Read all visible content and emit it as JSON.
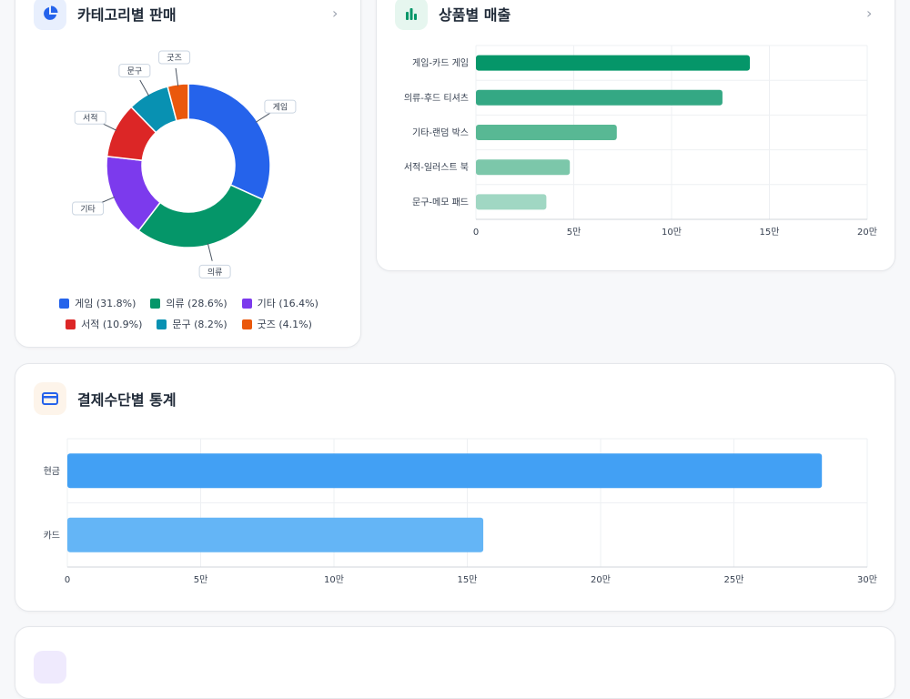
{
  "category_card": {
    "title": "카테고리별 판매",
    "icon": "pie-chart-icon",
    "chart_data": {
      "type": "pie",
      "categories": [
        "게임",
        "의류",
        "기타",
        "서적",
        "문구",
        "굿즈"
      ],
      "values": [
        31.8,
        28.6,
        16.4,
        10.9,
        8.2,
        4.1
      ],
      "colors": [
        "#2563eb",
        "#059669",
        "#7c3aed",
        "#dc2626",
        "#0891b2",
        "#ea580c"
      ],
      "legend": [
        "게임 (31.8%)",
        "의류 (28.6%)",
        "기타 (16.4%)",
        "서적 (10.9%)",
        "문구 (8.2%)",
        "굿즈 (4.1%)"
      ],
      "donut": true
    }
  },
  "product_card": {
    "title": "상품별 매출",
    "icon": "bar-chart-icon",
    "chart_data": {
      "type": "bar",
      "orientation": "horizontal",
      "categories": [
        "게임-카드 게임",
        "의류-후드 티셔츠",
        "기타-랜덤 박스",
        "서적-일러스트 북",
        "문구-메모 패드"
      ],
      "values": [
        140000,
        126000,
        72000,
        48000,
        36000
      ],
      "colors": [
        "#059669",
        "#34a884",
        "#58b894",
        "#7cc7aa",
        "#a0d7c3"
      ],
      "xlim": [
        0,
        200000
      ],
      "xticks": [
        0,
        50000,
        100000,
        150000,
        200000
      ],
      "xtick_labels": [
        "0",
        "5만",
        "10만",
        "15만",
        "20만"
      ],
      "grid": true
    }
  },
  "payment_card": {
    "title": "결제수단별 통계",
    "icon": "credit-card-icon",
    "chart_data": {
      "type": "bar",
      "orientation": "horizontal",
      "categories": [
        "현금",
        "카드"
      ],
      "values": [
        283000,
        156000
      ],
      "colors": [
        "#42a0f4",
        "#64b5f6"
      ],
      "xlim": [
        0,
        300000
      ],
      "xticks": [
        0,
        50000,
        100000,
        150000,
        200000,
        250000,
        300000
      ],
      "xtick_labels": [
        "0",
        "5만",
        "10만",
        "15만",
        "20만",
        "25만",
        "30만"
      ],
      "grid": true
    }
  }
}
